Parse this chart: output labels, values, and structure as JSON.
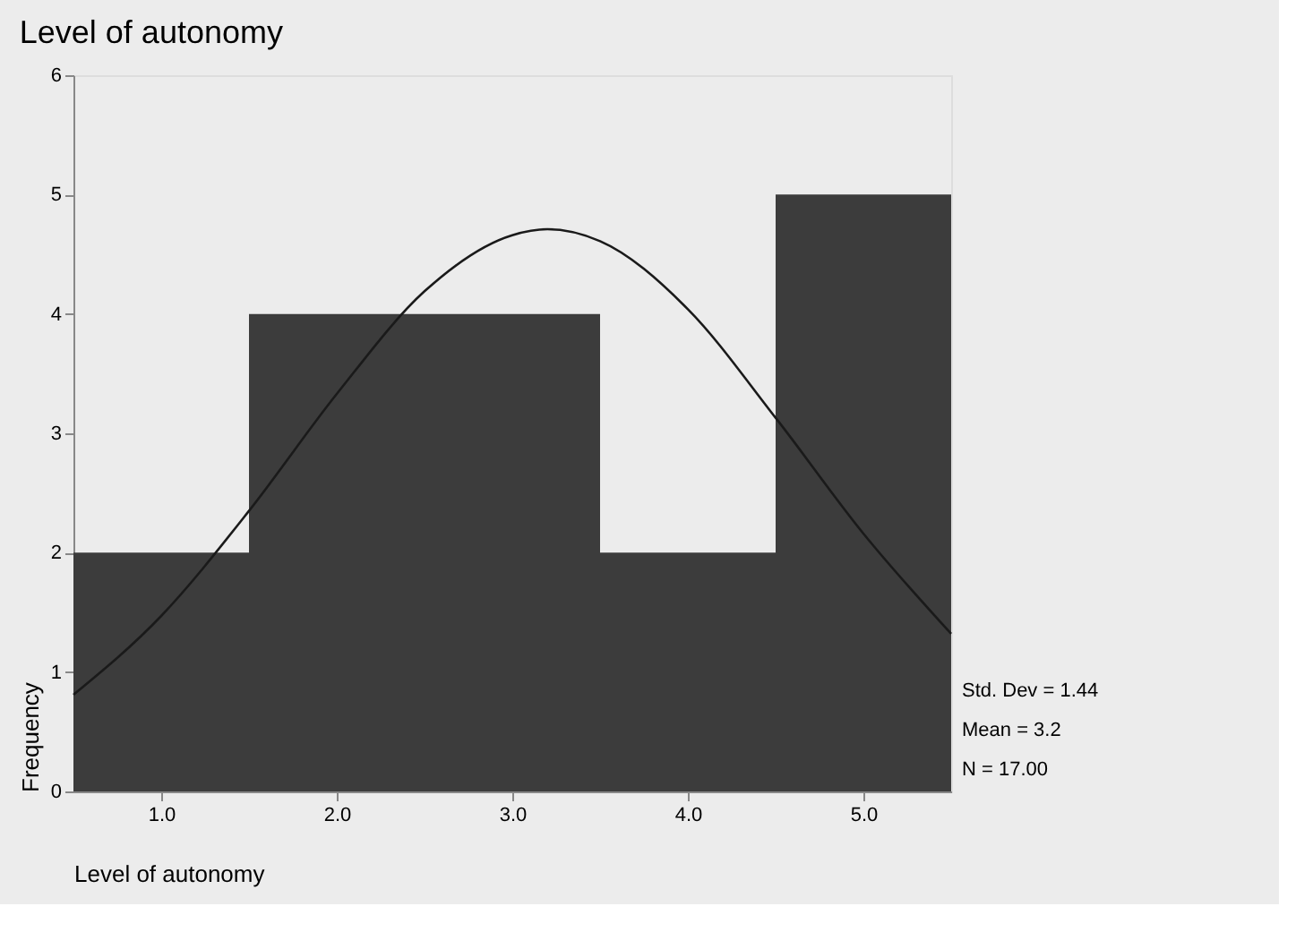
{
  "chart_data": {
    "type": "histogram",
    "title": "Level of autonomy",
    "xlabel": "Level of autonomy",
    "ylabel": "Frequency",
    "bins": [
      0.5,
      1.5,
      2.5,
      3.5,
      4.5,
      5.5
    ],
    "values": [
      2,
      4,
      4,
      2,
      5
    ],
    "color": "#3c3c3c",
    "series": [
      {
        "type": "line",
        "color": "#1a1a1a",
        "x": [
          0.5,
          1.0,
          1.5,
          2.0,
          2.5,
          3.0,
          3.2,
          3.5,
          4.0,
          4.5,
          5.0,
          5.5
        ],
        "values": [
          0.81,
          1.47,
          2.35,
          3.33,
          4.19,
          4.66,
          4.71,
          4.61,
          4.04,
          3.13,
          2.16,
          1.32
        ]
      }
    ],
    "xlim": [
      0.5,
      5.5
    ],
    "xticks": [
      {
        "value": 1,
        "label": "1.0"
      },
      {
        "value": 2,
        "label": "2.0"
      },
      {
        "value": 3,
        "label": "3.0"
      },
      {
        "value": 4,
        "label": "4.0"
      },
      {
        "value": 5,
        "label": "5.0"
      }
    ],
    "ylim": [
      0,
      6
    ],
    "yticks": [
      0,
      1,
      2,
      3,
      4,
      5,
      6
    ],
    "grid": false,
    "annotations": [
      "Std. Dev = 1.44",
      "Mean = 3.2",
      "N = 17.00"
    ]
  }
}
